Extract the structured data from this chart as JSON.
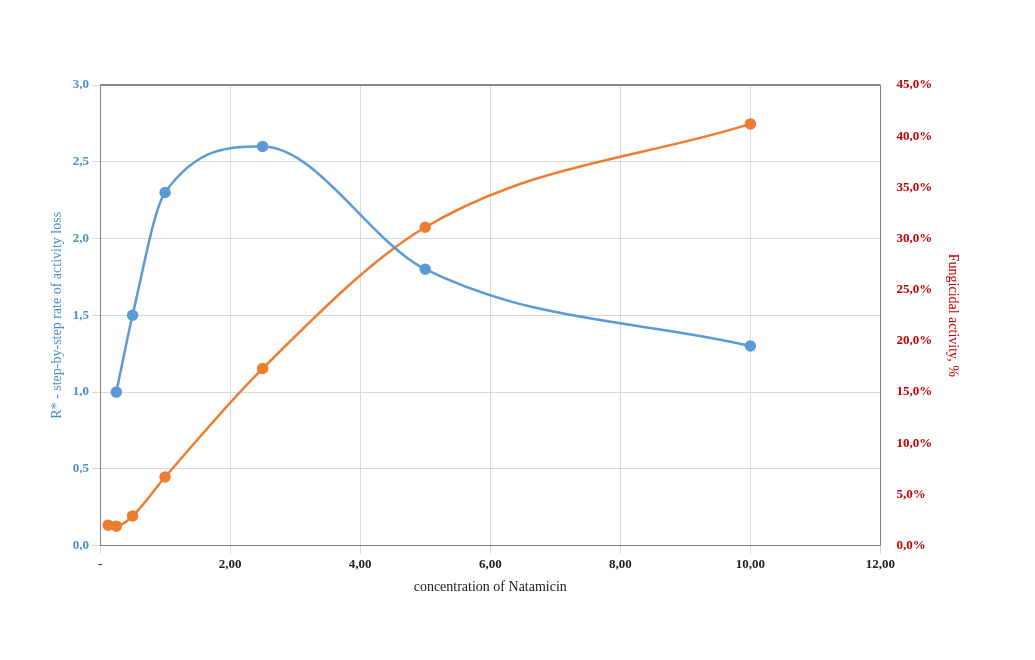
{
  "chart_data": {
    "type": "line",
    "xlabel": "concentration of Natamicin",
    "ylabel": "R* - step-by-step rate of activity loss",
    "y2label": "Fungicidal activity, %",
    "series": [
      {
        "color": "#5b9bd5",
        "x": [
          0.25,
          0.5,
          1,
          2.5,
          5,
          10
        ],
        "values": [
          1.0,
          1.5,
          2.3,
          2.6,
          1.8,
          1.3
        ]
      },
      {
        "color": "#ed7d31",
        "axis": "y2",
        "x": [
          0.125,
          0.25,
          0.5,
          1,
          2.5,
          5,
          10
        ],
        "values": [
          2.0,
          1.9,
          2.9,
          6.7,
          17.3,
          31.1,
          41.2
        ]
      }
    ],
    "xlim": [
      0,
      12
    ],
    "xticks": [
      {
        "value": 0,
        "label": "-"
      },
      {
        "value": 2,
        "label": "2,00"
      },
      {
        "value": 4,
        "label": "4,00"
      },
      {
        "value": 6,
        "label": "6,00"
      },
      {
        "value": 8,
        "label": "8,00"
      },
      {
        "value": 10,
        "label": "10,00"
      },
      {
        "value": 12,
        "label": "12,00"
      }
    ],
    "ylim": [
      0,
      3
    ],
    "yticks": [
      {
        "value": 0,
        "label": "0,0"
      },
      {
        "value": 0.5,
        "label": "0,5"
      },
      {
        "value": 1,
        "label": "1,0"
      },
      {
        "value": 1.5,
        "label": "1,5"
      },
      {
        "value": 2,
        "label": "2,0"
      },
      {
        "value": 2.5,
        "label": "2,5"
      },
      {
        "value": 3,
        "label": "3,0"
      }
    ],
    "y2lim": [
      0,
      45
    ],
    "y2ticks": [
      {
        "value": 0,
        "label": "0,0%"
      },
      {
        "value": 5,
        "label": "5,0%"
      },
      {
        "value": 10,
        "label": "10,0%"
      },
      {
        "value": 15,
        "label": "15,0%"
      },
      {
        "value": 20,
        "label": "20,0%"
      },
      {
        "value": 25,
        "label": "25,0%"
      },
      {
        "value": 30,
        "label": "30,0%"
      },
      {
        "value": 35,
        "label": "35,0%"
      },
      {
        "value": 40,
        "label": "40,0%"
      },
      {
        "value": 45,
        "label": "45,0%"
      }
    ],
    "grid": true,
    "legend": false,
    "marker": "circle",
    "line_style": "solid"
  }
}
